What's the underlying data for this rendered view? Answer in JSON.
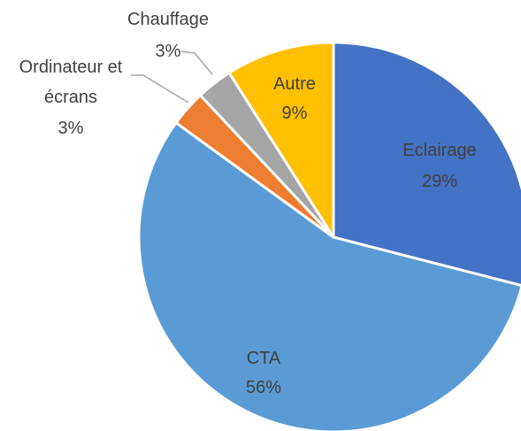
{
  "chart_data": {
    "type": "pie",
    "categories": [
      "Eclairage",
      "CTA",
      "Ordinateur et écrans",
      "Chauffage",
      "Autre"
    ],
    "values": [
      29,
      56,
      3,
      3,
      9
    ],
    "value_labels": [
      "29%",
      "56%",
      "3%",
      "3%",
      "9%"
    ],
    "colors": [
      "#4472c4",
      "#5b9bd5",
      "#ed7d31",
      "#a5a5a5",
      "#ffc000"
    ]
  }
}
